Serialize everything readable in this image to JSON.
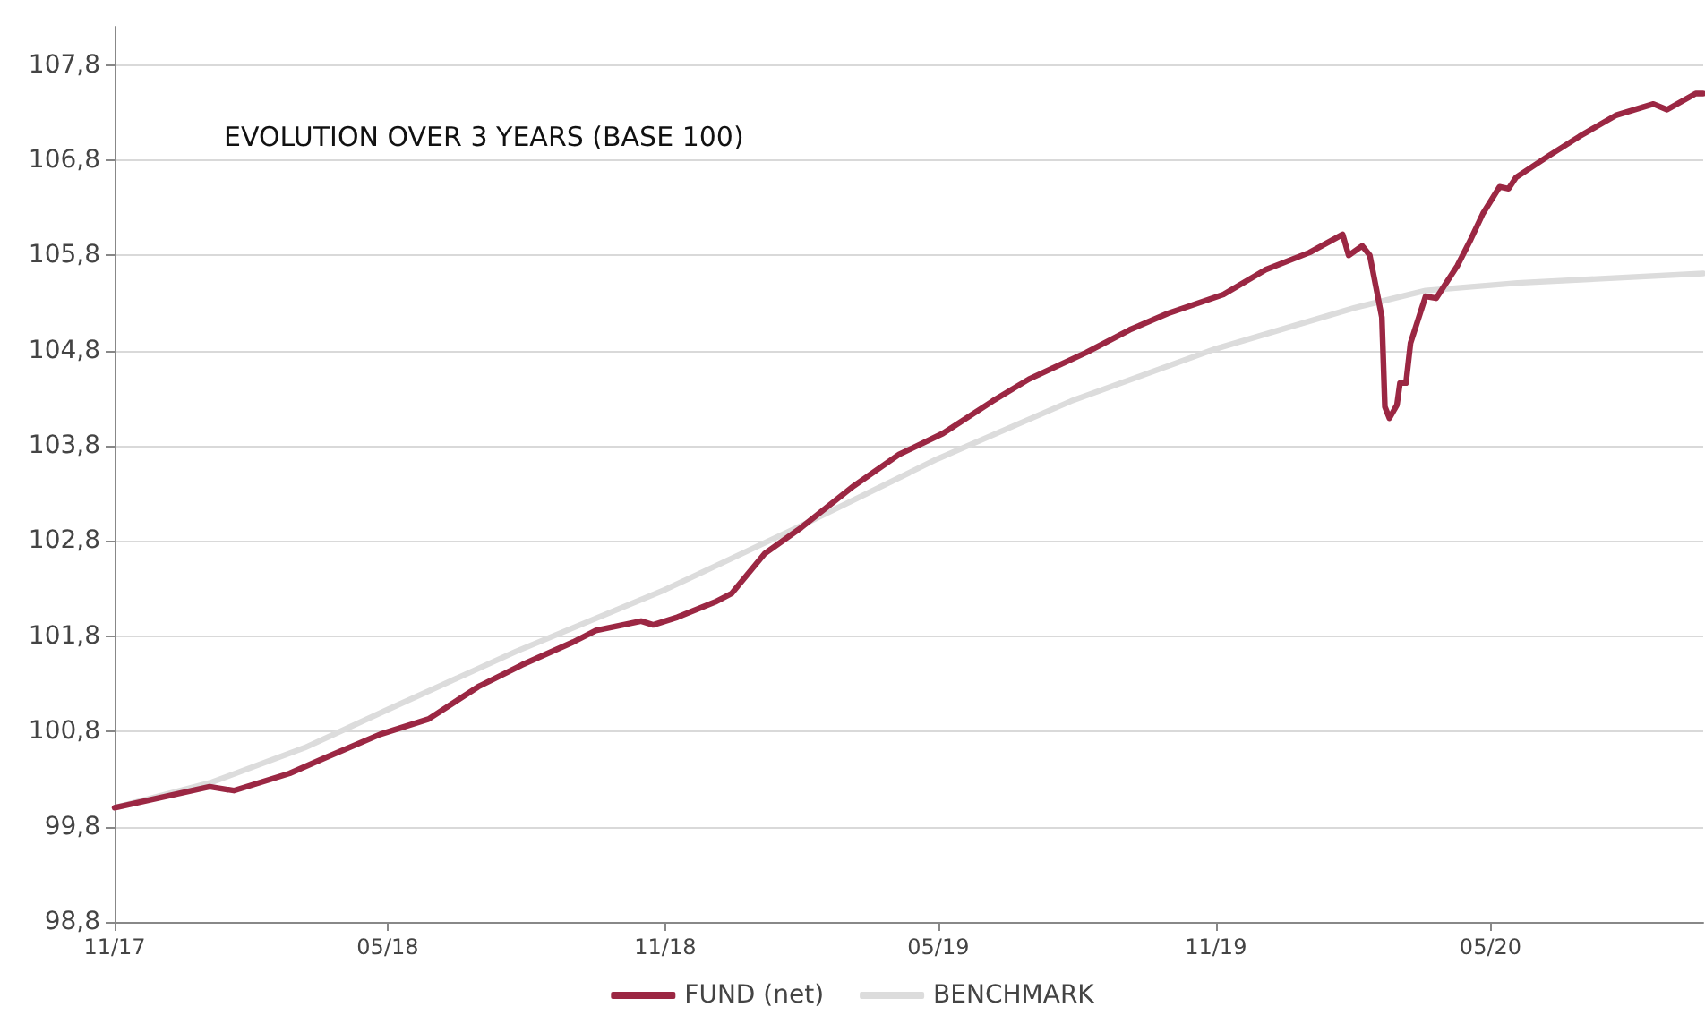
{
  "chart_data": {
    "type": "line",
    "title": "EVOLUTION OVER 3 YEARS (BASE 100)",
    "xlim": [
      "2017-11-01",
      "2020-09-19"
    ],
    "xticks": [
      {
        "value": "2017-11-01",
        "label": "11/17"
      },
      {
        "value": "2018-05-01",
        "label": "05/18"
      },
      {
        "value": "2018-11-01",
        "label": "11/18"
      },
      {
        "value": "2019-05-01",
        "label": "05/19"
      },
      {
        "value": "2019-11-01",
        "label": "11/19"
      },
      {
        "value": "2020-05-01",
        "label": "05/20"
      }
    ],
    "ylim": [
      98.8,
      108.2
    ],
    "yticks": [
      {
        "value": 98.8,
        "label": "98,8"
      },
      {
        "value": 99.8,
        "label": "99,8"
      },
      {
        "value": 100.8,
        "label": "100,8"
      },
      {
        "value": 101.8,
        "label": "101,8"
      },
      {
        "value": 102.8,
        "label": "102,8"
      },
      {
        "value": 103.8,
        "label": "103,8"
      },
      {
        "value": 104.8,
        "label": "104,8"
      },
      {
        "value": 105.8,
        "label": "105,8"
      },
      {
        "value": 106.8,
        "label": "106,8"
      },
      {
        "value": 107.8,
        "label": "107,8"
      }
    ],
    "grid": "y",
    "legend": "bottom",
    "series": [
      {
        "name": "FUND (net)",
        "color": "#9b2743",
        "x": [
          "2017-11-01",
          "2018-01-03",
          "2018-01-19",
          "2018-02-25",
          "2018-03-20",
          "2018-04-26",
          "2018-05-28",
          "2018-06-30",
          "2018-07-29",
          "2018-09-01",
          "2018-09-16",
          "2018-10-16",
          "2018-10-24",
          "2018-11-09",
          "2018-12-04",
          "2018-12-15",
          "2019-01-06",
          "2019-01-30",
          "2019-03-06",
          "2019-04-05",
          "2019-05-04",
          "2019-06-06",
          "2019-06-30",
          "2019-08-07",
          "2019-09-05",
          "2019-09-30",
          "2019-11-06",
          "2019-12-04",
          "2020-01-02",
          "2020-01-24",
          "2020-01-28",
          "2020-02-06",
          "2020-02-11",
          "2020-02-19",
          "2020-02-21",
          "2020-02-24",
          "2020-02-29",
          "2020-03-02",
          "2020-03-06",
          "2020-03-09",
          "2020-03-19",
          "2020-03-26",
          "2020-04-09",
          "2020-04-18",
          "2020-04-26",
          "2020-05-07",
          "2020-05-13",
          "2020-05-18",
          "2020-06-09",
          "2020-06-29",
          "2020-07-23",
          "2020-08-17",
          "2020-08-26",
          "2020-09-14",
          "2020-09-19"
        ],
        "values": [
          100.0,
          100.22,
          100.18,
          100.36,
          100.52,
          100.77,
          100.93,
          101.27,
          101.5,
          101.74,
          101.86,
          101.96,
          101.92,
          102.0,
          102.16,
          102.25,
          102.67,
          102.94,
          103.38,
          103.71,
          103.93,
          104.27,
          104.5,
          104.78,
          105.02,
          105.19,
          105.39,
          105.65,
          105.83,
          106.02,
          105.8,
          105.9,
          105.8,
          105.15,
          104.21,
          104.09,
          104.23,
          104.46,
          104.46,
          104.88,
          105.37,
          105.35,
          105.69,
          105.97,
          106.24,
          106.52,
          106.5,
          106.62,
          106.85,
          107.05,
          107.27,
          107.39,
          107.33,
          107.5,
          107.5
        ]
      },
      {
        "name": "BENCHMARK",
        "color": "#dcdcdc",
        "x": [
          "2017-11-01",
          "2018-01-03",
          "2018-03-07",
          "2018-05-01",
          "2018-07-25",
          "2018-11-01",
          "2019-01-30",
          "2019-04-30",
          "2019-07-28",
          "2019-11-01",
          "2020-02-01",
          "2020-03-19",
          "2020-05-19",
          "2020-09-19"
        ],
        "values": [
          100.0,
          100.26,
          100.63,
          101.03,
          101.64,
          102.29,
          102.96,
          103.66,
          104.27,
          104.82,
          105.25,
          105.43,
          105.51,
          105.61
        ]
      }
    ]
  }
}
